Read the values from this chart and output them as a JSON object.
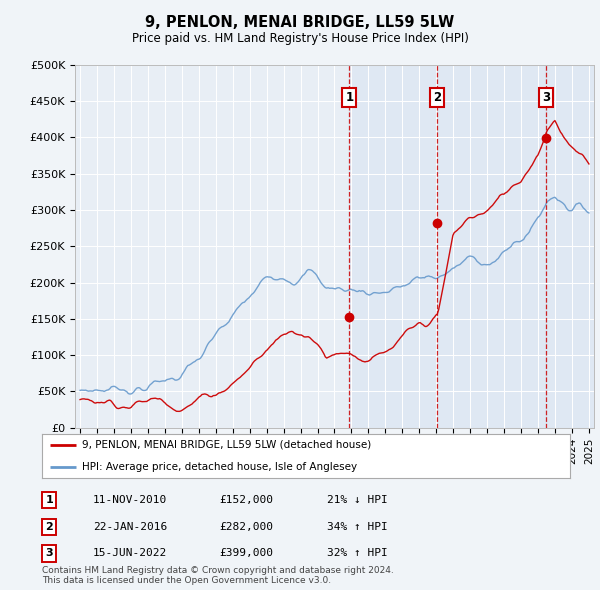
{
  "title": "9, PENLON, MENAI BRIDGE, LL59 5LW",
  "subtitle": "Price paid vs. HM Land Registry's House Price Index (HPI)",
  "ylabel_ticks": [
    "£0",
    "£50K",
    "£100K",
    "£150K",
    "£200K",
    "£250K",
    "£300K",
    "£350K",
    "£400K",
    "£450K",
    "£500K"
  ],
  "y_values": [
    0,
    50000,
    100000,
    150000,
    200000,
    250000,
    300000,
    350000,
    400000,
    450000,
    500000
  ],
  "ylim": [
    0,
    500000
  ],
  "x_start_year": 1995,
  "x_end_year": 2025,
  "background_color": "#f0f4f8",
  "plot_bg_color": "#e8eef5",
  "shade_color": "#d0dff0",
  "red_color": "#cc0000",
  "blue_color": "#6699cc",
  "sale_dates": [
    2010.87,
    2016.06,
    2022.46
  ],
  "sale_prices": [
    152000,
    282000,
    399000
  ],
  "sale_labels": [
    "1",
    "2",
    "3"
  ],
  "legend_entries": [
    "9, PENLON, MENAI BRIDGE, LL59 5LW (detached house)",
    "HPI: Average price, detached house, Isle of Anglesey"
  ],
  "table_rows": [
    [
      "1",
      "11-NOV-2010",
      "£152,000",
      "21% ↓ HPI"
    ],
    [
      "2",
      "22-JAN-2016",
      "£282,000",
      "34% ↑ HPI"
    ],
    [
      "3",
      "15-JUN-2022",
      "£399,000",
      "32% ↑ HPI"
    ]
  ],
  "footer": "Contains HM Land Registry data © Crown copyright and database right 2024.\nThis data is licensed under the Open Government Licence v3.0."
}
